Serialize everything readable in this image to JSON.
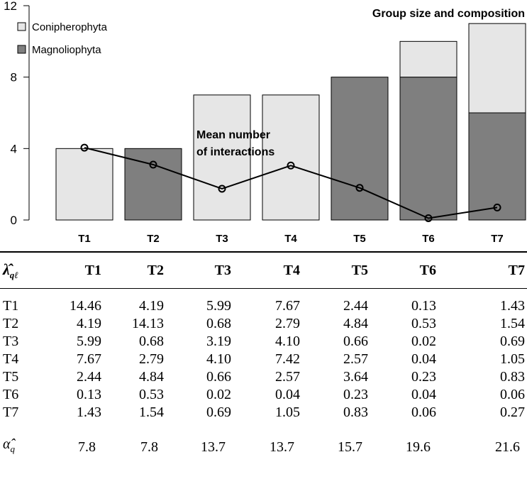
{
  "chart_data": {
    "type": "bar",
    "stacked": true,
    "title": "Group size and composition",
    "categories": [
      "T1",
      "T2",
      "T3",
      "T4",
      "T5",
      "T6",
      "T7"
    ],
    "series": [
      {
        "name": "Magnoliophyta",
        "color": "#7f7f7f",
        "values": [
          0,
          4,
          0,
          0,
          8,
          8,
          6
        ]
      },
      {
        "name": "Conipherophyta",
        "color": "#e6e6e6",
        "values": [
          4,
          0,
          7,
          7,
          0,
          2,
          5
        ]
      }
    ],
    "line": {
      "values": [
        4.05,
        3.1,
        1.75,
        3.05,
        1.8,
        0.1,
        0.7
      ],
      "color": "#000000"
    },
    "annotation_line1": "Mean number",
    "annotation_line2": "of interactions",
    "yticks": [
      "0",
      "4",
      "8",
      "12"
    ],
    "ylim": [
      0,
      12
    ],
    "grid": false,
    "legend_position": "top-left"
  },
  "table": {
    "corner_symbol": "λ̂",
    "corner_subscript": "qℓ",
    "columns": [
      "T1",
      "T2",
      "T3",
      "T4",
      "T5",
      "T6",
      "T7"
    ],
    "rows": [
      {
        "label": "T1",
        "values": [
          "14.46",
          "4.19",
          "5.99",
          "7.67",
          "2.44",
          "0.13",
          "1.43"
        ]
      },
      {
        "label": "T2",
        "values": [
          "4.19",
          "14.13",
          "0.68",
          "2.79",
          "4.84",
          "0.53",
          "1.54"
        ]
      },
      {
        "label": "T3",
        "values": [
          "5.99",
          "0.68",
          "3.19",
          "4.10",
          "0.66",
          "0.02",
          "0.69"
        ]
      },
      {
        "label": "T4",
        "values": [
          "7.67",
          "2.79",
          "4.10",
          "7.42",
          "2.57",
          "0.04",
          "1.05"
        ]
      },
      {
        "label": "T5",
        "values": [
          "2.44",
          "4.84",
          "0.66",
          "2.57",
          "3.64",
          "0.23",
          "0.83"
        ]
      },
      {
        "label": "T6",
        "values": [
          "0.13",
          "0.53",
          "0.02",
          "0.04",
          "0.23",
          "0.04",
          "0.06"
        ]
      },
      {
        "label": "T7",
        "values": [
          "1.43",
          "1.54",
          "0.69",
          "1.05",
          "0.83",
          "0.06",
          "0.27"
        ]
      }
    ],
    "alpha_symbol": "α̂",
    "alpha_subscript": "q",
    "alpha_values": [
      "7.8",
      "7.8",
      "13.7",
      "13.7",
      "15.7",
      "19.6",
      "21.6"
    ]
  }
}
